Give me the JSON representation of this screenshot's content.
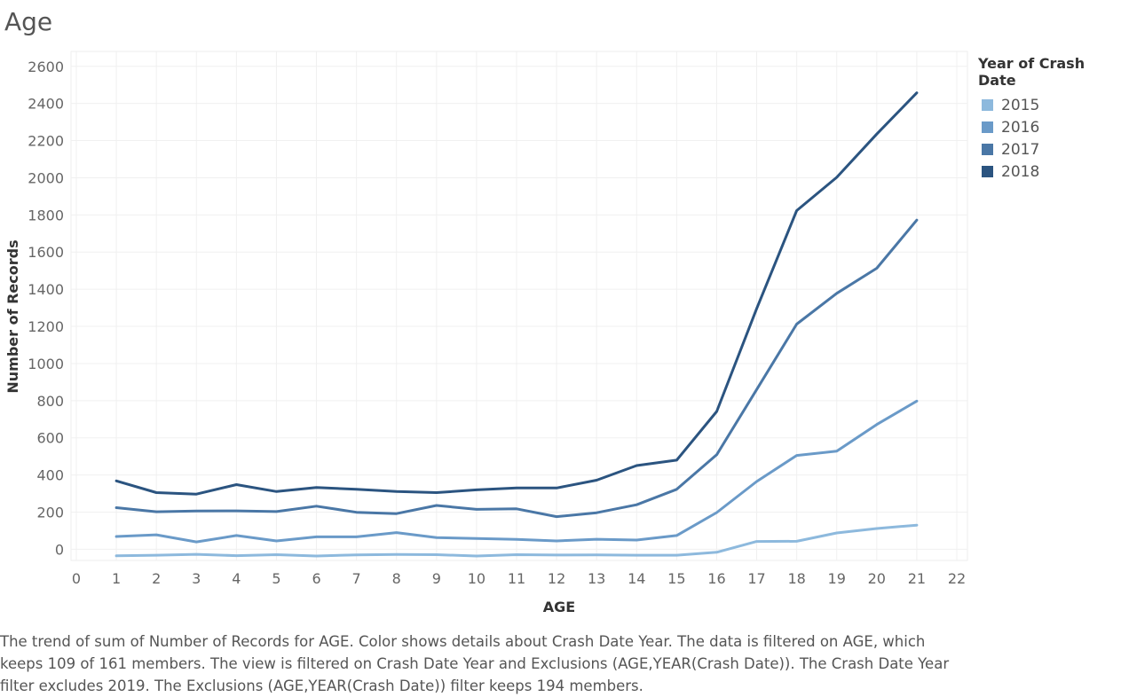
{
  "page_title": "Age",
  "legend": {
    "title": "Year of Crash Date",
    "items": [
      {
        "label": "2015",
        "color": "#8db9dd"
      },
      {
        "label": "2016",
        "color": "#6a9ac8"
      },
      {
        "label": "2017",
        "color": "#4a77a6"
      },
      {
        "label": "2018",
        "color": "#2b5480"
      }
    ]
  },
  "caption": "The trend of sum of Number of Records for AGE.  Color shows details about Crash Date Year. The data is filtered on AGE, which keeps 109 of 161 members. The view is filtered on Crash Date Year and Exclusions (AGE,YEAR(Crash Date)). The Crash Date Year filter excludes 2019. The Exclusions (AGE,YEAR(Crash Date)) filter keeps 194 members.",
  "chart_data": {
    "type": "line",
    "title": "Age",
    "xlabel": "AGE",
    "ylabel": "Number of Records",
    "xlim": [
      0,
      22
    ],
    "ylim": [
      -60,
      2680
    ],
    "x_ticks": [
      0,
      1,
      2,
      3,
      4,
      5,
      6,
      7,
      8,
      9,
      10,
      11,
      12,
      13,
      14,
      15,
      16,
      17,
      18,
      19,
      20,
      21,
      22
    ],
    "y_ticks": [
      0,
      200,
      400,
      600,
      800,
      1000,
      1200,
      1400,
      1600,
      1800,
      2000,
      2200,
      2400,
      2600
    ],
    "grid": true,
    "legend_position": "right",
    "x": [
      1,
      2,
      3,
      4,
      5,
      6,
      7,
      8,
      9,
      10,
      11,
      12,
      13,
      14,
      15,
      16,
      17,
      18,
      19,
      20,
      21
    ],
    "series": [
      {
        "name": "2015",
        "color": "#8db9dd",
        "values": [
          -35,
          -32,
          -27,
          -34,
          -29,
          -36,
          -30,
          -28,
          -29,
          -36,
          -29,
          -31,
          -30,
          -32,
          -32,
          -16,
          42,
          43,
          88,
          112,
          130
        ]
      },
      {
        "name": "2016",
        "color": "#6a9ac8",
        "values": [
          69,
          78,
          40,
          74,
          45,
          67,
          67,
          90,
          63,
          58,
          53,
          45,
          54,
          50,
          74,
          198,
          365,
          505,
          528,
          672,
          798
        ]
      },
      {
        "name": "2017",
        "color": "#4a77a6",
        "values": [
          224,
          202,
          206,
          207,
          203,
          232,
          199,
          192,
          236,
          215,
          218,
          176,
          197,
          240,
          323,
          509,
          860,
          1212,
          1378,
          1513,
          1772
        ]
      },
      {
        "name": "2018",
        "color": "#2b5480",
        "values": [
          368,
          305,
          297,
          348,
          311,
          333,
          323,
          311,
          305,
          320,
          330,
          330,
          372,
          451,
          480,
          742,
          1295,
          1823,
          2002,
          2235,
          2457
        ]
      }
    ]
  }
}
